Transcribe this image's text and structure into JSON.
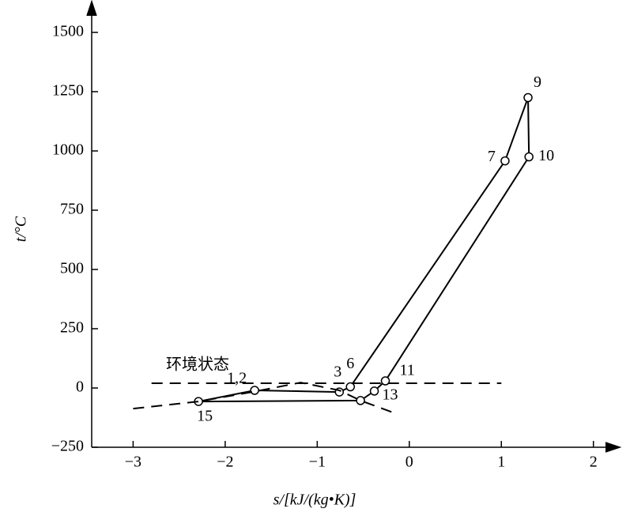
{
  "chart_data": {
    "type": "line",
    "xlabel": "s/[kJ/(kg•K)]",
    "ylabel": "t/°C",
    "annotation": "环境状态",
    "xlim": [
      -3.45,
      2.2
    ],
    "ylim": [
      -250,
      1620
    ],
    "xticks": [
      {
        "value": -3,
        "label": "−3"
      },
      {
        "value": -2,
        "label": "−2"
      },
      {
        "value": -1,
        "label": "−1"
      },
      0,
      1,
      2
    ],
    "yticks": [
      {
        "value": -250,
        "label": "−250"
      },
      0,
      250,
      500,
      750,
      1000,
      1250,
      1500
    ],
    "series": [
      {
        "style": "solid",
        "closed": true,
        "markers": true,
        "color": "#000",
        "x": [
          -2.29,
          -1.68,
          -0.76,
          -0.64,
          1.04,
          1.29,
          1.3,
          -0.26,
          -0.38,
          -0.53
        ],
        "values": [
          -57,
          -10,
          -17,
          5,
          958,
          1225,
          975,
          30,
          -13,
          -53
        ],
        "labels": [
          "15",
          "1,2",
          "3",
          "6",
          "7",
          "9",
          "10",
          "11",
          "13",
          null
        ]
      },
      {
        "style": "dashed",
        "closed": false,
        "markers": false,
        "color": "#000",
        "x": [
          -2.8,
          1.0
        ],
        "values": [
          20,
          20
        ]
      },
      {
        "style": "dashed",
        "closed": false,
        "markers": false,
        "color": "#000",
        "x": [
          -3.0,
          -2.29,
          -1.68,
          -1.18,
          -0.76,
          -0.53,
          -0.13
        ],
        "values": [
          -87,
          -57,
          -15,
          23,
          -10,
          -53,
          -110
        ]
      }
    ]
  }
}
